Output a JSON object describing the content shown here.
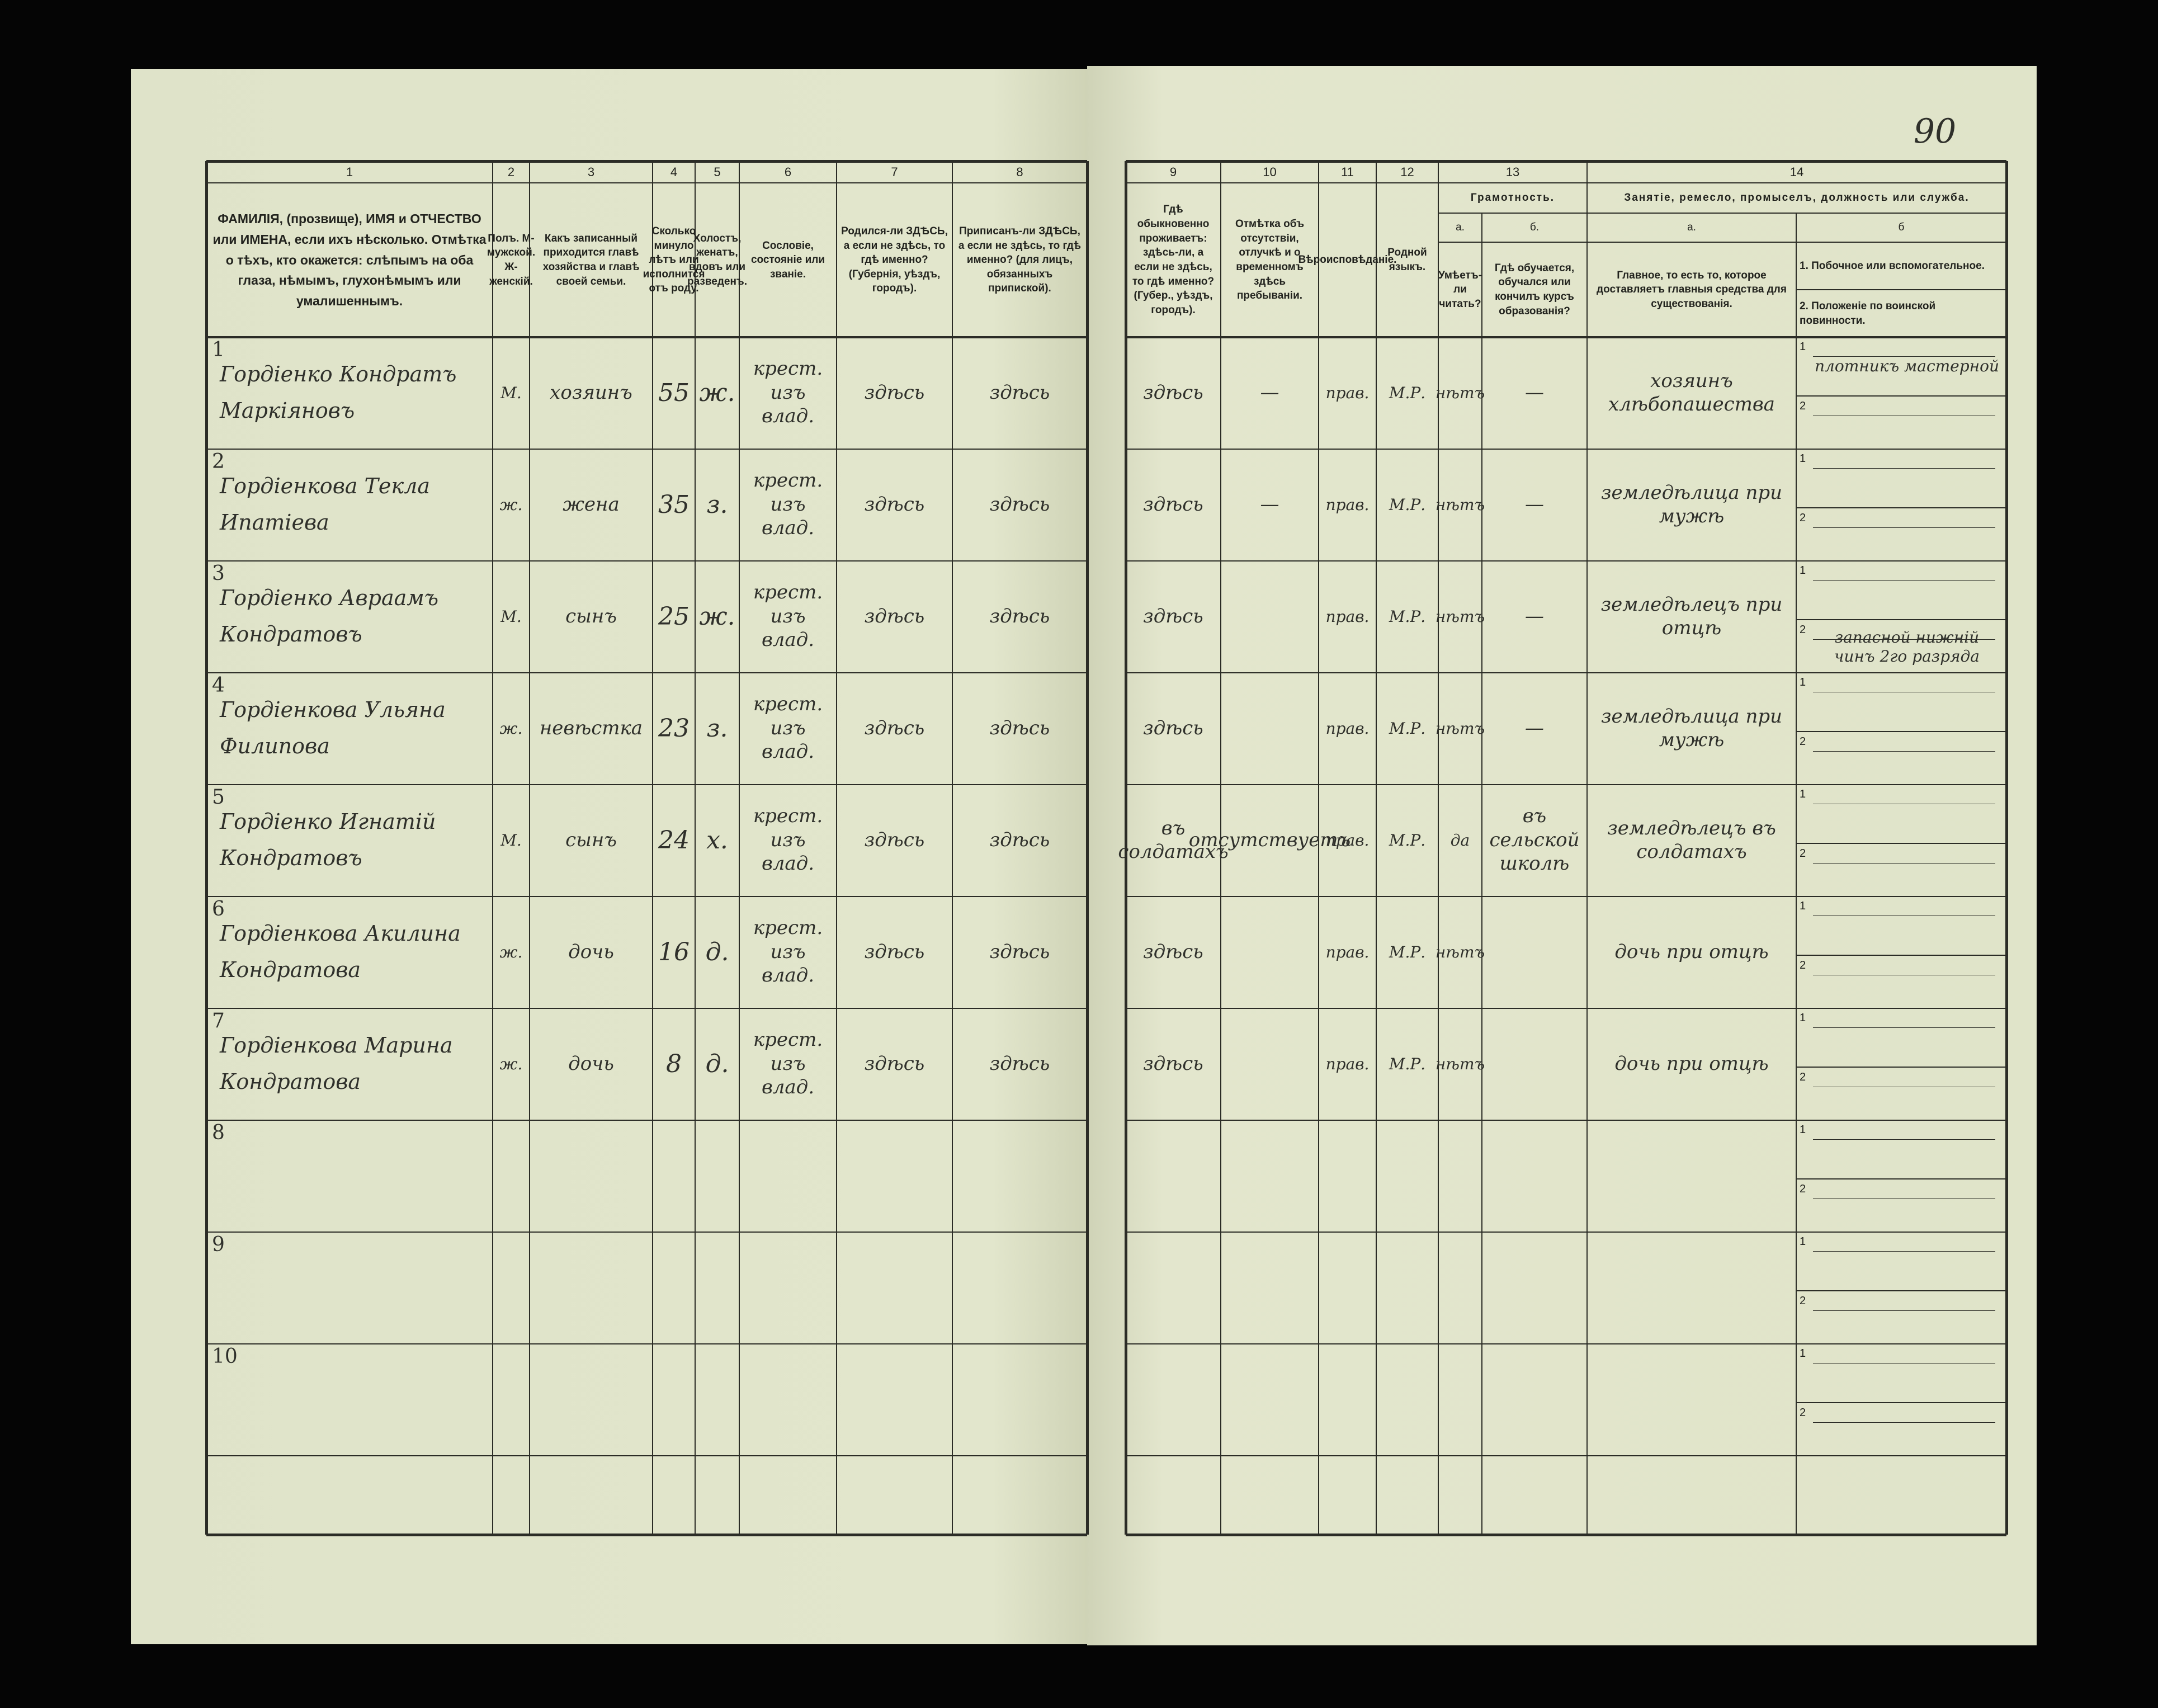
{
  "header": {
    "page_number": "90"
  },
  "table": {
    "columns": [
      {
        "number": "1",
        "title": "ФАМИЛІЯ, (прозвище), ИМЯ и ОТЧЕСТВО или ИМЕНА, если ихъ нѣсколько. Отмѣтка о тѣхъ, кто окажется: слѣпымъ на оба глаза, нѣмымъ, глухонѣмымъ или умалишеннымъ."
      },
      {
        "number": "2",
        "title": "Полъ. М-мужской. Ж-женскій."
      },
      {
        "number": "3",
        "title": "Какъ записанный приходится главѣ хозяйства и главѣ своей семьи."
      },
      {
        "number": "4",
        "title": "Сколько минуло лѣтъ или исполнится отъ роду."
      },
      {
        "number": "5",
        "title": "Холостъ, женатъ, вдовъ или разведенъ."
      },
      {
        "number": "6",
        "title": "Сословіе, состояніе или званіе."
      },
      {
        "number": "7",
        "title": "Родился-ли ЗДѢСЬ, а если не здѣсь, то гдѣ именно? (Губернія, уѣздъ, городъ)."
      },
      {
        "number": "8",
        "title": "Приписанъ-ли ЗДѢСЬ, а если не здѣсь, то гдѣ именно? (для лицъ, обязанныхъ припиской)."
      },
      {
        "number": "9",
        "title": "Гдѣ обыкновенно проживаетъ: здѣсь-ли, а если не здѣсь, то гдѣ именно? (Губер., уѣздъ, городъ)."
      },
      {
        "number": "10",
        "title": "Отмѣтка объ отсутствіи, отлучкѣ и о временномъ здѣсь пребываніи."
      },
      {
        "number": "11",
        "title": "Вѣроисповѣданіе."
      },
      {
        "number": "12",
        "title": "Родной языкъ."
      },
      {
        "number": "13",
        "title": "Грамотность.",
        "sub": [
          {
            "letter": "а.",
            "title": "Умѣетъ-ли читать?"
          },
          {
            "letter": "б.",
            "title": "Гдѣ обучается, обучался или кончилъ курсъ образованія?"
          }
        ]
      },
      {
        "number": "14",
        "title": "Занятіе, ремесло, промыселъ, должность или служба.",
        "sub": [
          {
            "letter": "а.",
            "title": "Главное, то есть то, которое доставляетъ главныя средства для существованія."
          },
          {
            "letter": "б",
            "items": [
              "1. Побочное или вспомогательное.",
              "2. Положеніе по воинской повинности."
            ]
          }
        ]
      }
    ],
    "side_labels": [
      "1",
      "2"
    ],
    "rows": [
      {
        "num": "1",
        "name": "Гордіенко Кондратъ Маркіяновъ",
        "sex": "М.",
        "relation": "хозяинъ",
        "age": "55",
        "marital": "ж.",
        "estate": "крест. изъ влад.",
        "born": "здѣсь",
        "registered": "здѣсь",
        "residence": "здѣсь",
        "absence": "—",
        "religion": "прав.",
        "language": "М.Р.",
        "literate": "нѣтъ",
        "education": "—",
        "occupation": "хозяинъ хлѣбопашества",
        "side_1": "плотникъ мастерной"
      },
      {
        "num": "2",
        "name": "Гордіенкова Текла Ипатіева",
        "sex": "ж.",
        "relation": "жена",
        "age": "35",
        "marital": "з.",
        "estate": "крест. изъ влад.",
        "born": "здѣсь",
        "registered": "здѣсь",
        "residence": "здѣсь",
        "absence": "—",
        "religion": "прав.",
        "language": "М.Р.",
        "literate": "нѣтъ",
        "education": "—",
        "occupation": "земледѣлица при мужѣ"
      },
      {
        "num": "3",
        "name": "Гордіенко Авраамъ Кондратовъ",
        "sex": "М.",
        "relation": "сынъ",
        "age": "25",
        "marital": "ж.",
        "estate": "крест. изъ влад.",
        "born": "здѣсь",
        "registered": "здѣсь",
        "residence": "здѣсь",
        "religion": "прав.",
        "language": "М.Р.",
        "literate": "нѣтъ",
        "education": "—",
        "occupation": "земледѣлецъ при отцѣ",
        "side_2": "запасной нижній чинъ 2го разряда"
      },
      {
        "num": "4",
        "name": "Гордіенкова Ульяна Филипова",
        "sex": "ж.",
        "relation": "невѣстка",
        "age": "23",
        "marital": "з.",
        "estate": "крест. изъ влад.",
        "born": "здѣсь",
        "registered": "здѣсь",
        "residence": "здѣсь",
        "religion": "прав.",
        "language": "М.Р.",
        "literate": "нѣтъ",
        "education": "—",
        "occupation": "земледѣлица при мужѣ"
      },
      {
        "num": "5",
        "name": "Гордіенко Игнатій Кондратовъ",
        "sex": "М.",
        "relation": "сынъ",
        "age": "24",
        "marital": "х.",
        "estate": "крест. изъ влад.",
        "born": "здѣсь",
        "registered": "здѣсь",
        "residence": "въ солдатахъ",
        "absence": "отсутствуетъ",
        "religion": "прав.",
        "language": "М.Р.",
        "literate": "да",
        "education": "въ сельской школѣ",
        "occupation": "земледѣлецъ въ солдатахъ"
      },
      {
        "num": "6",
        "name": "Гордіенкова Акилина Кондратова",
        "sex": "ж.",
        "relation": "дочь",
        "age": "16",
        "marital": "д.",
        "estate": "крест. изъ влад.",
        "born": "здѣсь",
        "registered": "здѣсь",
        "residence": "здѣсь",
        "religion": "прав.",
        "language": "М.Р.",
        "literate": "нѣтъ",
        "occupation": "дочь при отцѣ"
      },
      {
        "num": "7",
        "name": "Гордіенкова Марина Кондратова",
        "sex": "ж.",
        "relation": "дочь",
        "age": "8",
        "marital": "д.",
        "estate": "крест. изъ влад.",
        "born": "здѣсь",
        "registered": "здѣсь",
        "residence": "здѣсь",
        "religion": "прав.",
        "language": "М.Р.",
        "literate": "нѣтъ",
        "occupation": "дочь при отцѣ"
      },
      {
        "num": "8"
      },
      {
        "num": "9"
      },
      {
        "num": "10"
      }
    ]
  }
}
